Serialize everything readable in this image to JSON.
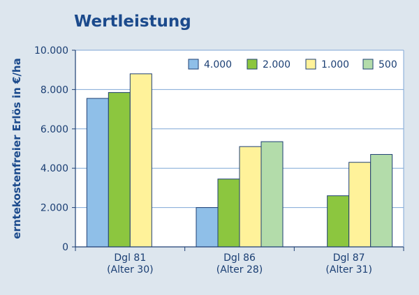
{
  "chart_data": {
    "type": "bar",
    "title": "Wertleistung",
    "ylabel": "erntekostenfreier Erlös in €/ha",
    "xlabel": "",
    "ylim": [
      0,
      10000
    ],
    "yticks": [
      0,
      2000,
      4000,
      6000,
      8000,
      10000
    ],
    "ytick_labels": [
      "0",
      "2.000",
      "4.000",
      "6.000",
      "8.000",
      "10.000"
    ],
    "categories": [
      [
        "Dgl 81",
        "(Alter 30)"
      ],
      [
        "Dgl 86",
        "(Alter 28)"
      ],
      [
        "Dgl 87",
        "(Alter 31)"
      ]
    ],
    "series": [
      {
        "name": "4.000",
        "color": "#8fbfe8",
        "values": [
          7550,
          2000,
          null
        ]
      },
      {
        "name": "2.000",
        "color": "#8cc63f",
        "values": [
          7850,
          3450,
          2600
        ]
      },
      {
        "name": "1.000",
        "color": "#fff29a",
        "values": [
          8800,
          5100,
          4300
        ]
      },
      {
        "name": "500",
        "color": "#b3dcaa",
        "values": [
          null,
          5350,
          4700
        ]
      }
    ],
    "grid": true,
    "legend_position": "top-right",
    "colors": {
      "plot_background": "#ffffff",
      "page_background": "#dde6ee",
      "gridline": "#7fa7d6",
      "bar_stroke": "#1e3f73",
      "text": "#1a3e73",
      "title": "#1b4a8c"
    }
  }
}
